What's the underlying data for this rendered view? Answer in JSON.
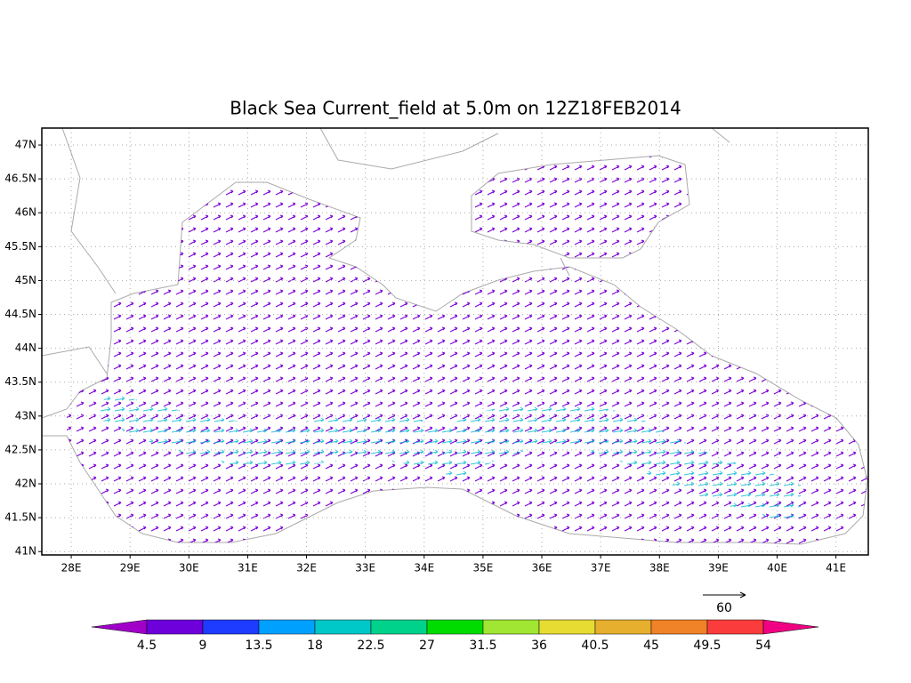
{
  "map": {
    "title": "Black Sea Current_field at 5.0m on 12Z18FEB2014",
    "xlim": [
      27.5,
      41.55
    ],
    "ylim": [
      40.95,
      47.25
    ],
    "xticks": [
      {
        "value": 28,
        "label": "28E"
      },
      {
        "value": 29,
        "label": "29E"
      },
      {
        "value": 30,
        "label": "30E"
      },
      {
        "value": 31,
        "label": "31E"
      },
      {
        "value": 32,
        "label": "32E"
      },
      {
        "value": 33,
        "label": "33E"
      },
      {
        "value": 34,
        "label": "34E"
      },
      {
        "value": 35,
        "label": "35E"
      },
      {
        "value": 36,
        "label": "36E"
      },
      {
        "value": 37,
        "label": "37E"
      },
      {
        "value": 38,
        "label": "38E"
      },
      {
        "value": 39,
        "label": "39E"
      },
      {
        "value": 40,
        "label": "40E"
      },
      {
        "value": 41,
        "label": "41E"
      }
    ],
    "yticks": [
      {
        "value": 41,
        "label": "41N"
      },
      {
        "value": 41.5,
        "label": "41.5N"
      },
      {
        "value": 42,
        "label": "42N"
      },
      {
        "value": 42.5,
        "label": "42.5N"
      },
      {
        "value": 43,
        "label": "43N"
      },
      {
        "value": 43.5,
        "label": "43.5N"
      },
      {
        "value": 44,
        "label": "44N"
      },
      {
        "value": 44.5,
        "label": "44.5N"
      },
      {
        "value": 45,
        "label": "45N"
      },
      {
        "value": 45.5,
        "label": "45.5N"
      },
      {
        "value": 46,
        "label": "46N"
      },
      {
        "value": 46.5,
        "label": "46.5N"
      },
      {
        "value": 47,
        "label": "47N"
      }
    ],
    "grid": true,
    "reference_vector": 60,
    "colorbar": {
      "levels": [
        4.5,
        9,
        13.5,
        18,
        22.5,
        27,
        31.5,
        36,
        40.5,
        45,
        49.5,
        54
      ],
      "colors": [
        "#a000c8",
        "#6e00dc",
        "#1e3cff",
        "#00a0ff",
        "#00c8c8",
        "#00d28c",
        "#00dc00",
        "#a0e632",
        "#e6dc32",
        "#e6af2d",
        "#f08228",
        "#fa3c3c",
        "#f00082"
      ]
    }
  }
}
